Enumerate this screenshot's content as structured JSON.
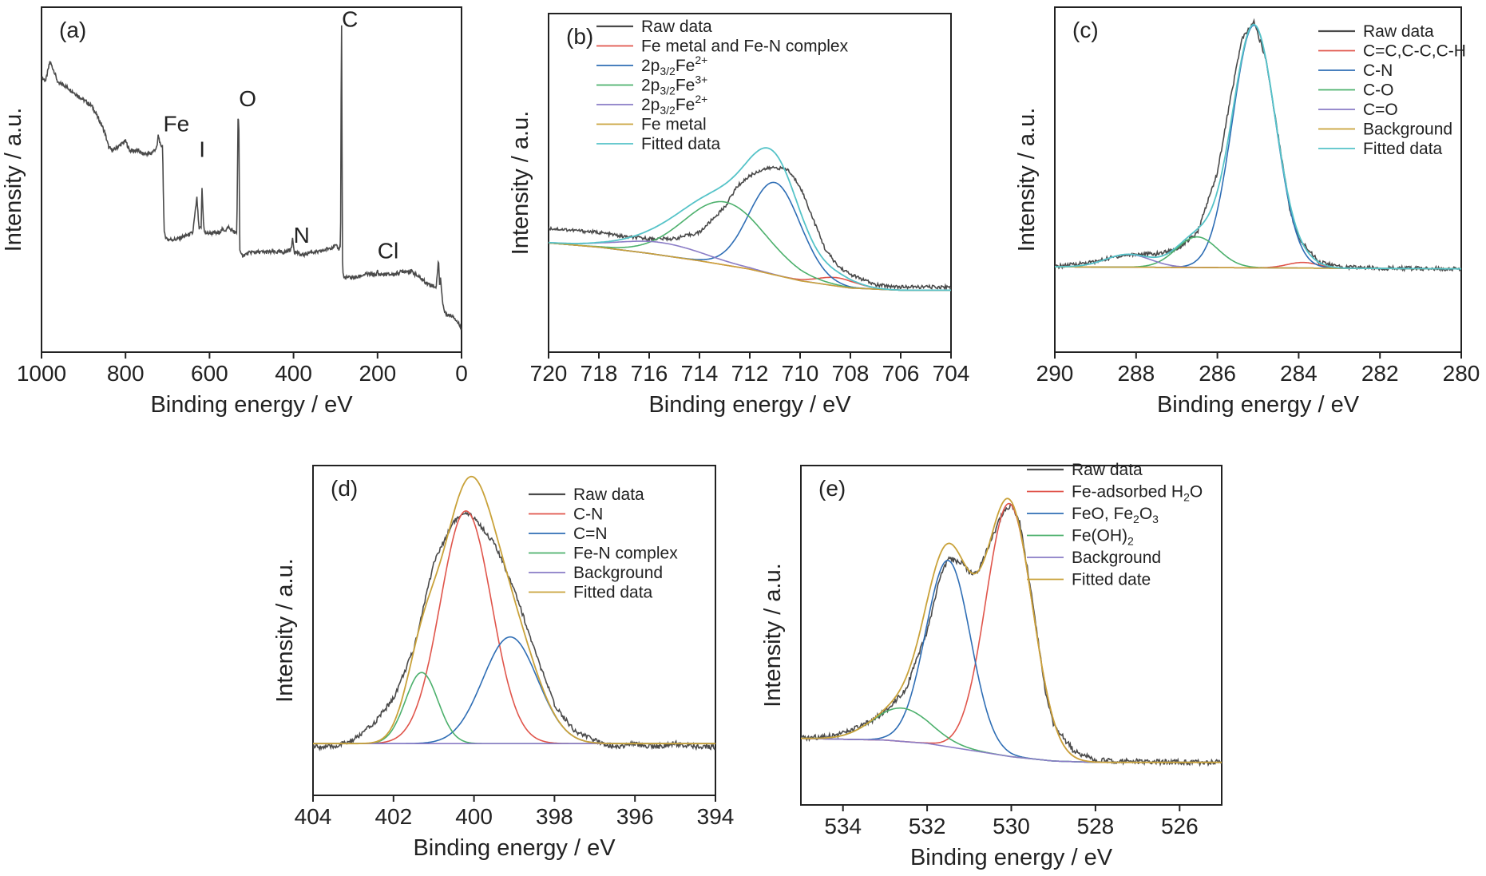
{
  "figure": {
    "panels": [
      "a",
      "b",
      "c",
      "d",
      "e"
    ]
  },
  "colors": {
    "raw": "#4a4a4a",
    "red": "#e0554b",
    "blue": "#2f6eb5",
    "green": "#4cb06c",
    "purple": "#8a7cc6",
    "gold": "#c9a23a",
    "cyan": "#55c3c8"
  },
  "chart_data": [
    {
      "id": "a",
      "panel_label": "(a)",
      "type": "line",
      "xlabel": "Binding energy / eV",
      "ylabel": "Intensity / a.u.",
      "xlim": [
        1000,
        0
      ],
      "ylim": [
        0,
        100
      ],
      "xticks": [
        1000,
        800,
        600,
        400,
        200,
        0
      ],
      "xtick_labels": [
        "1000",
        "800",
        "600",
        "400",
        "200",
        "0"
      ],
      "annotations": [
        {
          "text": "Fe",
          "x": 710,
          "y": 63
        },
        {
          "text": "I",
          "x": 625,
          "y": 55
        },
        {
          "text": "O",
          "x": 530,
          "y": 71
        },
        {
          "text": "N",
          "x": 400,
          "y": 28
        },
        {
          "text": "C",
          "x": 285,
          "y": 96
        },
        {
          "text": "Cl",
          "x": 200,
          "y": 23
        }
      ],
      "series": [
        {
          "color_key": "raw",
          "width": 1.6,
          "x": [
            1000,
            990,
            980,
            970,
            960,
            950,
            940,
            920,
            900,
            880,
            860,
            850,
            840,
            830,
            820,
            800,
            790,
            780,
            770,
            760,
            740,
            725,
            722,
            719,
            716,
            712,
            708,
            705,
            700,
            690,
            680,
            660,
            640,
            632,
            630,
            628,
            625,
            620,
            618,
            615,
            612,
            600,
            590,
            580,
            570,
            560,
            555,
            550,
            545,
            540,
            535,
            532,
            530,
            528,
            525,
            520,
            500,
            480,
            460,
            440,
            420,
            405,
            402,
            400,
            398,
            395,
            380,
            360,
            340,
            320,
            300,
            292,
            288,
            286,
            285,
            284,
            282,
            280,
            270,
            250,
            230,
            210,
            202,
            200,
            198,
            180,
            160,
            140,
            120,
            100,
            80,
            60,
            55,
            52,
            50,
            45,
            40,
            30,
            20,
            10,
            0
          ],
          "y": [
            80,
            79,
            85,
            82,
            78,
            78,
            77,
            75,
            73,
            71,
            66,
            63,
            58,
            57,
            58,
            60,
            57,
            57,
            57,
            56,
            56,
            58,
            62,
            60,
            58,
            59,
            31,
            30,
            29,
            29,
            29,
            30,
            31,
            40,
            42,
            38,
            32,
            33,
            46,
            36,
            31,
            31,
            31,
            31,
            32,
            32,
            33,
            32,
            32,
            31,
            31,
            70,
            63,
            26,
            24,
            24,
            25,
            25,
            25,
            25,
            25,
            26,
            30,
            27,
            25,
            25,
            24,
            25,
            25,
            26,
            27,
            26,
            27,
            97,
            96,
            24,
            18,
            17,
            17,
            17,
            18,
            18,
            18,
            19,
            18,
            18,
            18,
            19,
            19,
            17,
            15,
            14,
            23,
            14,
            17,
            9,
            6,
            5,
            5,
            3,
            1
          ]
        }
      ]
    },
    {
      "id": "b",
      "panel_label": "(b)",
      "type": "line",
      "xlabel": "Binding energy / eV",
      "ylabel": "Intensity / a.u.",
      "xlim": [
        720,
        704
      ],
      "ylim": [
        0,
        100
      ],
      "xticks": [
        720,
        718,
        716,
        714,
        712,
        710,
        708,
        706,
        704
      ],
      "xtick_labels": [
        "720",
        "718",
        "716",
        "714",
        "712",
        "710",
        "708",
        "706",
        "704"
      ],
      "legend": [
        {
          "label": "Raw data",
          "color_key": "raw"
        },
        {
          "label": "Fe metal and Fe-N complex",
          "color_key": "red"
        },
        {
          "label": "2p3/2Fe2+",
          "color_key": "blue"
        },
        {
          "label": "2p3/2Fe3+",
          "color_key": "green"
        },
        {
          "label": "2p3/2Fe2+",
          "color_key": "purple"
        },
        {
          "label": "Fe metal",
          "color_key": "gold"
        },
        {
          "label": "Fitted data",
          "color_key": "cyan"
        }
      ],
      "legend_parts": [
        {
          "main": "Raw data"
        },
        {
          "main": "Fe metal and Fe-N complex"
        },
        {
          "main": "2p",
          "sub": "3/2",
          "rest": "Fe",
          "sup": "2+"
        },
        {
          "main": "2p",
          "sub": "3/2",
          "rest": "Fe",
          "sup": "3+"
        },
        {
          "main": "2p",
          "sub": "3/2",
          "rest": "Fe",
          "sup": "2+"
        },
        {
          "main": "Fe metal"
        },
        {
          "main": "Fitted data"
        }
      ],
      "legend_position": "top-left",
      "background": {
        "x": [
          720,
          718,
          716,
          714,
          712,
          710,
          708,
          706,
          704
        ],
        "y": [
          23,
          21,
          18,
          14.5,
          10.5,
          5,
          1.5,
          0.5,
          0.5
        ]
      },
      "components": [
        {
          "color_key": "red",
          "center": 708.5,
          "height": 4,
          "fwhm": 1.8
        },
        {
          "color_key": "blue",
          "center": 711.0,
          "height": 44,
          "fwhm": 2.4
        },
        {
          "color_key": "green",
          "center": 713.0,
          "height": 30,
          "fwhm": 3.8
        },
        {
          "color_key": "purple",
          "center": 715.5,
          "height": 6,
          "fwhm": 4.0
        }
      ],
      "raw": {
        "color_key": "raw",
        "x": [
          720,
          719,
          718,
          717,
          716,
          715,
          714,
          713,
          712.5,
          712,
          711.5,
          711,
          710.5,
          710,
          709.5,
          709,
          708.5,
          708,
          707,
          706,
          705,
          704
        ],
        "y": [
          30,
          29,
          28,
          26,
          25,
          25,
          28,
          40,
          50,
          55,
          58,
          59,
          58,
          50,
          35,
          20,
          12,
          8,
          3,
          2,
          2,
          2
        ]
      },
      "fitted_color_key": "cyan",
      "background_color_key": "gold"
    },
    {
      "id": "c",
      "panel_label": "(c)",
      "type": "line",
      "xlabel": "Binding energy / eV",
      "ylabel": "Intensity / a.u.",
      "xlim": [
        290,
        280
      ],
      "ylim": [
        0,
        100
      ],
      "xticks": [
        290,
        288,
        286,
        284,
        282,
        280
      ],
      "xtick_labels": [
        "290",
        "288",
        "286",
        "284",
        "282",
        "280"
      ],
      "legend": [
        {
          "label": "Raw data",
          "color_key": "raw"
        },
        {
          "label": "C=C,C-C,C-H",
          "color_key": "red"
        },
        {
          "label": "C-N",
          "color_key": "blue"
        },
        {
          "label": "C-O",
          "color_key": "green"
        },
        {
          "label": "C=O",
          "color_key": "purple"
        },
        {
          "label": "Background",
          "color_key": "gold"
        },
        {
          "label": "Fitted data",
          "color_key": "cyan"
        }
      ],
      "legend_position": "top-right",
      "background": {
        "x": [
          290,
          280
        ],
        "y": [
          1,
          0.2
        ]
      },
      "components": [
        {
          "color_key": "red",
          "center": 283.9,
          "height": 2.2,
          "fwhm": 0.9
        },
        {
          "color_key": "blue",
          "center": 285.1,
          "height": 95,
          "fwhm": 1.25
        },
        {
          "color_key": "green",
          "center": 286.5,
          "height": 12,
          "fwhm": 1.2
        },
        {
          "color_key": "purple",
          "center": 288.2,
          "height": 5,
          "fwhm": 1.3
        }
      ],
      "raw": {
        "color_key": "raw",
        "x": [
          290,
          289,
          288.5,
          288,
          287.5,
          287,
          286.5,
          286,
          285.7,
          285.4,
          285.1,
          284.8,
          284.5,
          284.2,
          284,
          283.5,
          283,
          282,
          281,
          280
        ],
        "y": [
          1,
          3,
          5,
          6,
          6,
          8,
          14,
          38,
          65,
          90,
          97,
          82,
          52,
          22,
          12,
          3,
          1,
          0.5,
          0.3,
          0.2
        ]
      },
      "fitted_color_key": "cyan",
      "background_color_key": "gold"
    },
    {
      "id": "d",
      "panel_label": "(d)",
      "type": "line",
      "xlabel": "Binding energy / eV",
      "ylabel": "Intensity / a.u.",
      "xlim": [
        404,
        394
      ],
      "ylim": [
        0,
        100
      ],
      "xticks": [
        404,
        402,
        400,
        398,
        396,
        394
      ],
      "xtick_labels": [
        "404",
        "402",
        "400",
        "398",
        "396",
        "394"
      ],
      "legend": [
        {
          "label": "Raw data",
          "color_key": "raw"
        },
        {
          "label": "C-N",
          "color_key": "red"
        },
        {
          "label": "C=N",
          "color_key": "blue"
        },
        {
          "label": "Fe-N complex",
          "color_key": "green"
        },
        {
          "label": "Background",
          "color_key": "purple"
        },
        {
          "label": "Fitted data",
          "color_key": "gold"
        }
      ],
      "legend_position": "top-right",
      "background": {
        "x": [
          404,
          394
        ],
        "y": [
          16,
          16
        ]
      },
      "components": [
        {
          "color_key": "red",
          "center": 400.2,
          "height": 72,
          "fwhm": 1.5
        },
        {
          "color_key": "blue",
          "center": 399.1,
          "height": 33,
          "fwhm": 1.6
        },
        {
          "color_key": "green",
          "center": 401.3,
          "height": 22,
          "fwhm": 0.95
        }
      ],
      "raw": {
        "color_key": "raw",
        "x": [
          404,
          403.5,
          403,
          402.5,
          402,
          401.5,
          401,
          400.5,
          400.2,
          400,
          399.5,
          399,
          398.5,
          398,
          397.5,
          397,
          396.5,
          396,
          395.5,
          395,
          394.5,
          394
        ],
        "y": [
          15,
          15,
          17,
          22,
          30,
          45,
          72,
          85,
          87,
          86,
          78,
          64,
          45,
          28,
          20,
          17,
          15,
          16,
          15,
          16,
          15,
          15
        ]
      },
      "fitted_color_key": "gold",
      "background_color_key": "purple"
    },
    {
      "id": "e",
      "panel_label": "(e)",
      "type": "line",
      "xlabel": "Binding energy / eV",
      "ylabel": "Intensity / a.u.",
      "xlim": [
        535,
        525
      ],
      "ylim": [
        0,
        100
      ],
      "xticks": [
        534,
        532,
        530,
        528,
        526
      ],
      "xtick_labels": [
        "534",
        "532",
        "530",
        "528",
        "526"
      ],
      "legend": [
        {
          "label": "Raw data",
          "color_key": "raw"
        },
        {
          "label": "Fe-adsorbed H2O",
          "color_key": "red"
        },
        {
          "label": "FeO, Fe2O3",
          "color_key": "blue"
        },
        {
          "label": "Fe(OH)2",
          "color_key": "green"
        },
        {
          "label": "Background",
          "color_key": "purple"
        },
        {
          "label": "Fitted date",
          "color_key": "gold"
        }
      ],
      "legend_parts": [
        {
          "main": "Raw data"
        },
        {
          "main": "Fe-adsorbed H",
          "sub": "2",
          "rest": "O"
        },
        {
          "main": "FeO, Fe",
          "sub": "2",
          "rest": "O",
          "sub2": "3"
        },
        {
          "main": "Fe(OH)",
          "sub": "2"
        },
        {
          "main": "Background"
        },
        {
          "main": "Fitted date"
        }
      ],
      "legend_position": "top-right",
      "background": {
        "x": [
          535,
          533,
          532,
          531,
          530,
          529,
          528,
          525
        ],
        "y": [
          20,
          19.5,
          18.5,
          16.5,
          14.5,
          13.2,
          12.8,
          12.8
        ]
      },
      "components": [
        {
          "color_key": "red",
          "center": 530.05,
          "height": 76,
          "fwhm": 1.3
        },
        {
          "color_key": "blue",
          "center": 531.5,
          "height": 56,
          "fwhm": 1.25
        },
        {
          "color_key": "green",
          "center": 532.6,
          "height": 10,
          "fwhm": 1.6
        }
      ],
      "raw": {
        "color_key": "raw",
        "x": [
          535,
          534.5,
          534,
          533.5,
          533,
          532.5,
          532,
          531.7,
          531.5,
          531.2,
          531,
          530.8,
          530.5,
          530.2,
          530,
          529.8,
          529.5,
          529.2,
          529,
          528.5,
          528,
          527,
          526,
          525.2
        ],
        "y": [
          20,
          20.5,
          21.5,
          24,
          28,
          35,
          52,
          68,
          74,
          73,
          70,
          70,
          79,
          88,
          90,
          85,
          62,
          35,
          24,
          16,
          13.5,
          13,
          12.8,
          12.8
        ]
      },
      "fitted_color_key": "gold",
      "background_color_key": "purple"
    }
  ]
}
